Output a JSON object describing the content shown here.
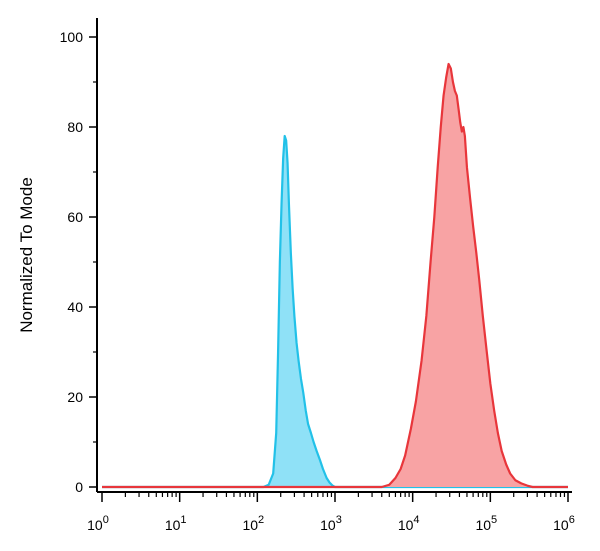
{
  "chart_data": {
    "type": "area",
    "title": "",
    "xlabel": "",
    "ylabel": "Normalized To Mode",
    "x_scale": "log",
    "xlim": [
      1,
      1000000
    ],
    "ylim": [
      0,
      105
    ],
    "y_ticks": [
      0,
      20,
      40,
      60,
      80,
      100
    ],
    "y_tick_labels": [
      "0",
      "20",
      "40",
      "60",
      "80",
      "100"
    ],
    "x_ticks": [
      {
        "base": "10",
        "exp": "0"
      },
      {
        "base": "10",
        "exp": "1"
      },
      {
        "base": "10",
        "exp": "2"
      },
      {
        "base": "10",
        "exp": "3"
      },
      {
        "base": "10",
        "exp": "4"
      },
      {
        "base": "10",
        "exp": "5"
      },
      {
        "base": "10",
        "exp": "6"
      }
    ],
    "grid": false,
    "legend": "none",
    "series": [
      {
        "color": "#22c1e8",
        "fill": "#8fe1f7",
        "points": [
          [
            1,
            0
          ],
          [
            60,
            0
          ],
          [
            120,
            0
          ],
          [
            140,
            0.5
          ],
          [
            160,
            3
          ],
          [
            175,
            12
          ],
          [
            185,
            30
          ],
          [
            195,
            50
          ],
          [
            205,
            63
          ],
          [
            215,
            73
          ],
          [
            225,
            78
          ],
          [
            235,
            77
          ],
          [
            245,
            72
          ],
          [
            255,
            63
          ],
          [
            270,
            52
          ],
          [
            285,
            44
          ],
          [
            300,
            38
          ],
          [
            320,
            32
          ],
          [
            340,
            28
          ],
          [
            365,
            24
          ],
          [
            390,
            21
          ],
          [
            420,
            17
          ],
          [
            450,
            14
          ],
          [
            490,
            12
          ],
          [
            530,
            10
          ],
          [
            580,
            8
          ],
          [
            640,
            6
          ],
          [
            700,
            4
          ],
          [
            780,
            2
          ],
          [
            850,
            1
          ],
          [
            930,
            0.3
          ],
          [
            1000,
            0
          ],
          [
            1000000,
            0
          ]
        ]
      },
      {
        "color": "#e8363b",
        "fill": "#f8a3a4",
        "points": [
          [
            1,
            0
          ],
          [
            4000,
            0
          ],
          [
            5000,
            0.5
          ],
          [
            6000,
            2
          ],
          [
            7000,
            4
          ],
          [
            8000,
            7
          ],
          [
            9500,
            13
          ],
          [
            11000,
            19
          ],
          [
            13000,
            28
          ],
          [
            15000,
            38
          ],
          [
            17000,
            50
          ],
          [
            19000,
            60
          ],
          [
            21000,
            71
          ],
          [
            23000,
            80
          ],
          [
            25000,
            87
          ],
          [
            27000,
            91
          ],
          [
            29000,
            94
          ],
          [
            31000,
            93
          ],
          [
            33000,
            90
          ],
          [
            35000,
            88
          ],
          [
            37000,
            87
          ],
          [
            39000,
            84
          ],
          [
            41000,
            81
          ],
          [
            43000,
            79
          ],
          [
            45000,
            80
          ],
          [
            47000,
            78
          ],
          [
            50000,
            71
          ],
          [
            55000,
            64
          ],
          [
            60000,
            58
          ],
          [
            66000,
            52
          ],
          [
            72000,
            46
          ],
          [
            80000,
            38
          ],
          [
            90000,
            30
          ],
          [
            100000,
            23
          ],
          [
            112000,
            17
          ],
          [
            125000,
            12
          ],
          [
            140000,
            8
          ],
          [
            160000,
            5
          ],
          [
            180000,
            3
          ],
          [
            210000,
            1.5
          ],
          [
            250000,
            0.8
          ],
          [
            300000,
            0.3
          ],
          [
            350000,
            0
          ],
          [
            1000000,
            0
          ]
        ]
      }
    ]
  }
}
